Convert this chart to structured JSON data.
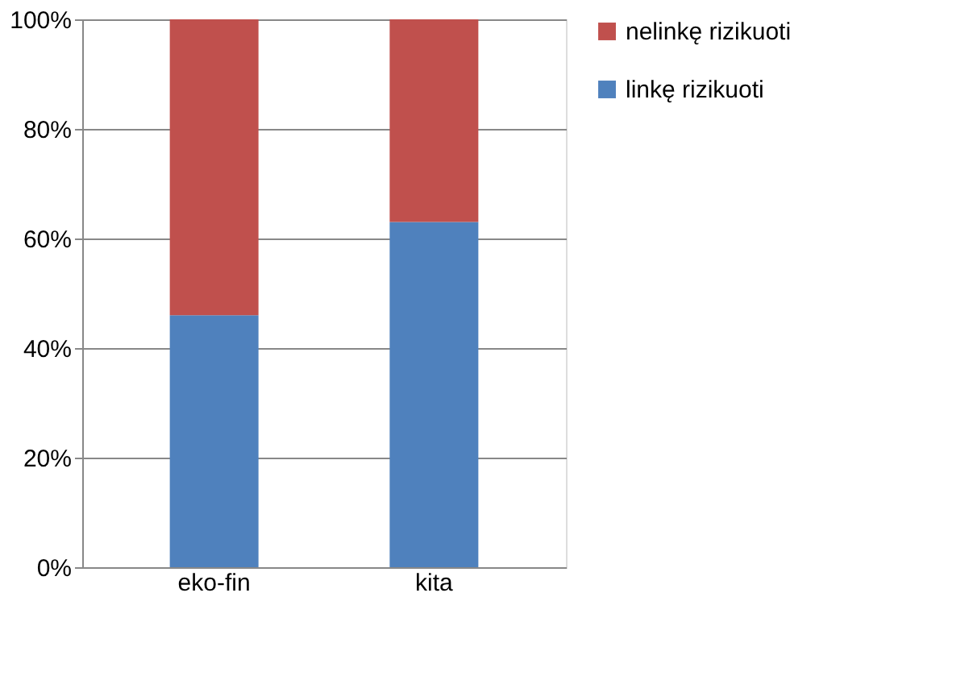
{
  "chart_data": {
    "type": "bar",
    "stacked": true,
    "categories": [
      "eko-fin",
      "kita"
    ],
    "series": [
      {
        "name": "linkę rizikuoti",
        "color": "#4f81bd",
        "values": [
          46,
          63
        ]
      },
      {
        "name": "nelinkę rizikuoti",
        "color": "#c0504d",
        "values": [
          54,
          37
        ]
      }
    ],
    "ylim": [
      0,
      100
    ],
    "yticks": [
      {
        "value": 0,
        "label": "0%"
      },
      {
        "value": 20,
        "label": "20%"
      },
      {
        "value": 40,
        "label": "40%"
      },
      {
        "value": 60,
        "label": "60%"
      },
      {
        "value": 80,
        "label": "80%"
      },
      {
        "value": 100,
        "label": "100%"
      }
    ],
    "grid": "y",
    "legend": "right"
  }
}
